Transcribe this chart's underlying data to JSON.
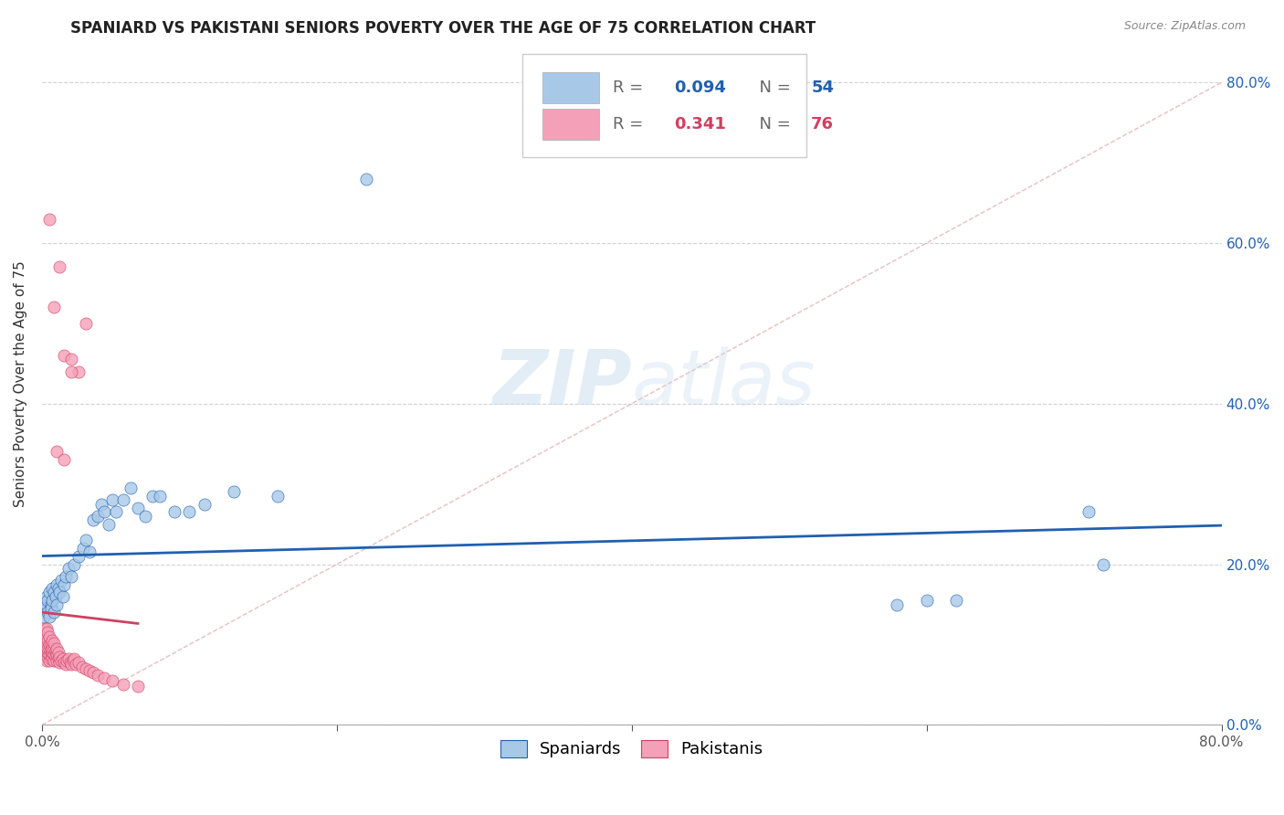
{
  "title": "SPANIARD VS PAKISTANI SENIORS POVERTY OVER THE AGE OF 75 CORRELATION CHART",
  "source": "Source: ZipAtlas.com",
  "ylabel": "Seniors Poverty Over the Age of 75",
  "xlim": [
    0.0,
    0.8
  ],
  "ylim": [
    0.0,
    0.85
  ],
  "xticks": [
    0.0,
    0.8
  ],
  "yticks": [
    0.0,
    0.2,
    0.4,
    0.6,
    0.8
  ],
  "spaniard_color": "#A8C8E8",
  "pakistani_color": "#F4A0B8",
  "spaniard_line_color": "#2060B0",
  "pakistani_line_color": "#D04060",
  "diagonal_color": "#E0B0B0",
  "R_spaniard": 0.094,
  "N_spaniard": 54,
  "R_pakistani": 0.341,
  "N_pakistani": 76,
  "background_color": "#FFFFFF",
  "grid_color": "#CCCCCC",
  "watermark_zip": "ZIP",
  "watermark_atlas": "atlas",
  "title_fontsize": 12,
  "axis_label_fontsize": 11,
  "tick_fontsize": 11,
  "legend_fontsize": 13
}
